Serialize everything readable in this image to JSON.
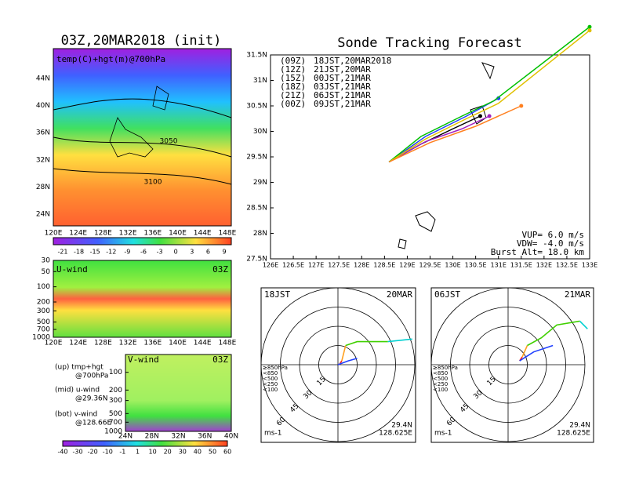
{
  "map_panel": {
    "title": "03Z,20MAR2018 (init)",
    "label": "temp(C)+hgt(m)@700hPa",
    "contour_labels": [
      "3050",
      "3100"
    ],
    "lat_ticks": [
      "44N",
      "40N",
      "36N",
      "32N",
      "28N",
      "24N"
    ],
    "lon_ticks": [
      "120E",
      "124E",
      "128E",
      "132E",
      "136E",
      "140E",
      "144E",
      "148E"
    ],
    "colorbar_ticks": [
      -21,
      -18,
      -15,
      -12,
      -9,
      -6,
      -3,
      0,
      3,
      6,
      9
    ]
  },
  "u_panel": {
    "label": "U-wind",
    "time": "03Z",
    "plim": [
      30,
      1000
    ],
    "pticks": [
      30,
      50,
      100,
      200,
      300,
      500,
      700,
      1000
    ],
    "lon_ticks": [
      "120E",
      "124E",
      "128E",
      "132E",
      "136E",
      "140E",
      "144E",
      "148E"
    ]
  },
  "v_panel": {
    "label": "V-wind",
    "time": "03Z",
    "plim": [
      50,
      1000
    ],
    "pticks": [
      100,
      200,
      300,
      500,
      700,
      1000
    ],
    "lat_ticks": [
      "24N",
      "28N",
      "32N",
      "36N",
      "40N"
    ],
    "colorbar_ticks": [
      -40,
      -30,
      -20,
      -10,
      -1,
      1,
      10,
      20,
      30,
      40,
      50,
      60
    ]
  },
  "notes": [
    "(up) tmp+hgt",
    "@700hPa",
    "(mid) u-wind",
    "@29.36N",
    "(bot) v-wind",
    "@128.66E"
  ],
  "tracking": {
    "title": "Sonde Tracking Forecast",
    "xlim": [
      126,
      133
    ],
    "ylim": [
      27.5,
      31.5
    ],
    "xticks": [
      {
        "value": 126,
        "label": "126E"
      },
      {
        "value": 126.5,
        "label": "126.5E"
      },
      {
        "value": 127,
        "label": "127E"
      },
      {
        "value": 127.5,
        "label": "127.5E"
      },
      {
        "value": 128,
        "label": "128E"
      },
      {
        "value": 128.5,
        "label": "128.5E"
      },
      {
        "value": 129,
        "label": "129E"
      },
      {
        "value": 129.5,
        "label": "129.5E"
      },
      {
        "value": 130,
        "label": "130E"
      },
      {
        "value": 130.5,
        "label": "130.5E"
      },
      {
        "value": 131,
        "label": "131E"
      },
      {
        "value": 131.5,
        "label": "131.5E"
      },
      {
        "value": 132,
        "label": "132E"
      },
      {
        "value": 132.5,
        "label": "132.5E"
      },
      {
        "value": 133,
        "label": "133E"
      }
    ],
    "yticks": [
      {
        "value": 27.5,
        "label": "27.5N"
      },
      {
        "value": 28,
        "label": "28N"
      },
      {
        "value": 28.5,
        "label": "28.5N"
      },
      {
        "value": 29,
        "label": "29N"
      },
      {
        "value": 29.5,
        "label": "29.5N"
      },
      {
        "value": 30,
        "label": "30N"
      },
      {
        "value": 30.5,
        "label": "30.5N"
      },
      {
        "value": 31,
        "label": "31N"
      },
      {
        "value": 31.5,
        "label": "31.5N"
      }
    ],
    "series": [
      {
        "code": "(09Z)",
        "time": "18JST,20MAR2018",
        "color": "#000000",
        "lon": [
          128.6,
          129.3,
          130.0,
          130.6
        ],
        "lat": [
          29.4,
          29.75,
          30.05,
          30.3
        ]
      },
      {
        "code": "(12Z)",
        "time": "21JST,20MAR",
        "color": "#a020c0",
        "lon": [
          128.6,
          129.4,
          130.2,
          130.8
        ],
        "lat": [
          29.4,
          29.8,
          30.05,
          30.3
        ]
      },
      {
        "code": "(15Z)",
        "time": "00JST,21MAR",
        "color": "#2040ff",
        "lon": [
          128.6,
          129.4,
          130.3,
          131.0
        ],
        "lat": [
          29.4,
          29.9,
          30.3,
          30.65
        ]
      },
      {
        "code": "(18Z)",
        "time": "03JST,21MAR",
        "color": "#00c000",
        "lon": [
          128.6,
          129.3,
          130.2,
          130.9,
          133.0
        ],
        "lat": [
          29.4,
          29.9,
          30.3,
          30.6,
          32.05
        ]
      },
      {
        "code": "(21Z)",
        "time": "06JST,21MAR",
        "color": "#e0c000",
        "lon": [
          128.6,
          129.4,
          130.3,
          131.0,
          133.0
        ],
        "lat": [
          29.4,
          29.85,
          30.25,
          30.55,
          31.98
        ]
      },
      {
        "code": "(00Z)",
        "time": "09JST,21MAR",
        "color": "#ff8020",
        "lon": [
          128.6,
          129.5,
          130.5,
          131.5
        ],
        "lat": [
          29.4,
          29.78,
          30.1,
          30.5
        ]
      }
    ],
    "params": [
      "VUP= 6.0 m/s",
      "VDW= -4.0 m/s",
      "Burst Alt= 18.0 km"
    ]
  },
  "hodographs": [
    {
      "time": "18JST",
      "date": "20MAR",
      "lat": "29.4N",
      "lon": "128.625E",
      "unit": "ms-1",
      "segments": [
        {
          "color": "#ff2020",
          "u": [
            1,
            3
          ],
          "v": [
            0,
            3
          ]
        },
        {
          "color": "#ffa020",
          "u": [
            3,
            6
          ],
          "v": [
            3,
            15
          ]
        },
        {
          "color": "#40d000",
          "u": [
            6,
            15,
            39
          ],
          "v": [
            15,
            18,
            18
          ]
        },
        {
          "color": "#00d0d0",
          "u": [
            39,
            58
          ],
          "v": [
            18,
            20
          ]
        },
        {
          "color": "#2040ff",
          "u": [
            0,
            8,
            15
          ],
          "v": [
            0,
            3,
            5
          ]
        }
      ]
    },
    {
      "time": "06JST",
      "date": "21MAR",
      "lat": "29.4N",
      "lon": "128.625E",
      "unit": "ms-1",
      "segments": [
        {
          "color": "#ff2020",
          "u": [
            9,
            11
          ],
          "v": [
            3,
            6
          ]
        },
        {
          "color": "#ffa020",
          "u": [
            11,
            15
          ],
          "v": [
            6,
            15
          ]
        },
        {
          "color": "#40d000",
          "u": [
            15,
            26,
            38,
            56
          ],
          "v": [
            15,
            21,
            31,
            34
          ]
        },
        {
          "color": "#00d0d0",
          "u": [
            56,
            62
          ],
          "v": [
            34,
            28
          ]
        },
        {
          "color": "#2040ff",
          "u": [
            9,
            20,
            35
          ],
          "v": [
            3,
            10,
            15
          ]
        }
      ]
    }
  ],
  "ring_ticks": [
    15,
    30,
    45,
    60
  ],
  "rlim": 60,
  "level_legend": [
    {
      "label": "≥850hPa",
      "color": "#ff2020"
    },
    {
      "label": "<850",
      "color": "#ffa020"
    },
    {
      "label": "<500",
      "color": "#40d000"
    },
    {
      "label": "<250",
      "color": "#00d0d0"
    },
    {
      "label": "<100",
      "color": "#2040ff"
    }
  ]
}
